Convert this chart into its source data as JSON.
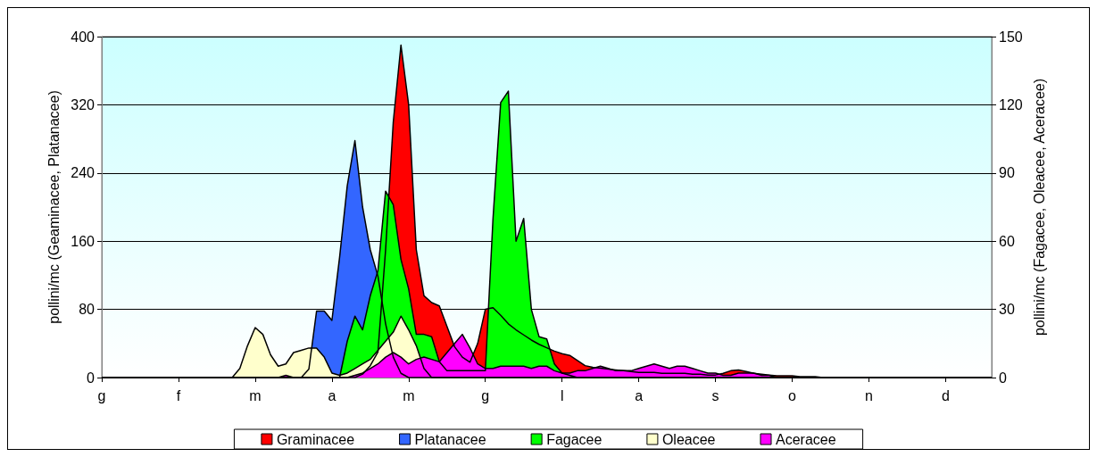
{
  "chart_data": {
    "type": "area",
    "ylabel": "pollini/mc (Geaminacee, Platanacee)",
    "y2label": "pollini/mc (Fagacee, Oleacee, Aceracee)",
    "categories": [
      "g",
      null,
      null,
      null,
      null,
      null,
      null,
      null,
      null,
      null,
      "f",
      null,
      null,
      null,
      null,
      null,
      null,
      null,
      null,
      null,
      "m",
      null,
      null,
      null,
      null,
      null,
      null,
      null,
      null,
      null,
      "a",
      null,
      null,
      null,
      null,
      null,
      null,
      null,
      null,
      null,
      "m",
      null,
      null,
      null,
      null,
      null,
      null,
      null,
      null,
      null,
      "g",
      null,
      null,
      null,
      null,
      null,
      null,
      null,
      null,
      null,
      "l",
      null,
      null,
      null,
      null,
      null,
      null,
      null,
      null,
      null,
      "a",
      null,
      null,
      null,
      null,
      null,
      null,
      null,
      null,
      null,
      "s",
      null,
      null,
      null,
      null,
      null,
      null,
      null,
      null,
      null,
      "o",
      null,
      null,
      null,
      null,
      null,
      null,
      null,
      null,
      null,
      "n",
      null,
      null,
      null,
      null,
      null,
      null,
      null,
      null,
      null,
      "d",
      null,
      null,
      null,
      null,
      null,
      null
    ],
    "ylim": [
      0,
      400
    ],
    "yticks": [
      0,
      80,
      160,
      240,
      320,
      400
    ],
    "y2lim": [
      0,
      150
    ],
    "y2ticks": [
      0,
      30,
      60,
      90,
      120,
      150
    ],
    "grid": "y",
    "legend": "bottom",
    "marker": "none",
    "series": [
      {
        "name": "Graminacee",
        "color": "#ff0000",
        "values": [
          0,
          0,
          0,
          0,
          0,
          0,
          0,
          0,
          0,
          0,
          0,
          0,
          0,
          0,
          0,
          0,
          0,
          0,
          0,
          0,
          0,
          0,
          0,
          0,
          0,
          0,
          0,
          0,
          0,
          0,
          0,
          0,
          0,
          0,
          4,
          14,
          30,
          150,
          300,
          390,
          320,
          150,
          96,
          88,
          84,
          60,
          36,
          24,
          18,
          40,
          80,
          82,
          73,
          63,
          56,
          50,
          44,
          39,
          35,
          31,
          28,
          26,
          20,
          14,
          12,
          11,
          10,
          9,
          8,
          7,
          6,
          6,
          6,
          5,
          5,
          5,
          5,
          4,
          4,
          3,
          3,
          5,
          8,
          9,
          7,
          5,
          4,
          3,
          2,
          2,
          2,
          1,
          1,
          1,
          0,
          0,
          0,
          0,
          0,
          0,
          0,
          0,
          0,
          0,
          0,
          0,
          0,
          0,
          0,
          0,
          0,
          0,
          0,
          0,
          0,
          0,
          0
        ]
      },
      {
        "name": "Platanacee",
        "color": "#3366ff",
        "values": [
          0,
          0,
          0,
          0,
          0,
          0,
          0,
          0,
          0,
          0,
          0,
          0,
          0,
          0,
          0,
          0,
          0,
          0,
          0,
          0,
          0,
          0,
          0,
          0,
          0,
          0,
          0,
          10,
          78,
          78,
          67,
          141,
          225,
          278,
          200,
          150,
          119,
          63,
          24,
          5,
          0,
          0,
          0,
          0,
          0,
          0,
          0,
          0,
          0,
          0,
          0,
          0,
          0,
          0,
          0,
          0,
          0,
          0,
          0,
          0,
          0,
          0,
          0,
          0,
          0,
          0,
          0,
          0,
          0,
          0,
          0,
          0,
          0,
          0,
          0,
          0,
          0,
          0,
          0,
          0,
          0,
          0,
          0,
          0,
          0,
          0,
          0,
          0,
          0,
          0,
          0,
          0,
          0,
          0,
          0,
          0,
          0,
          0,
          0,
          0,
          0,
          0,
          0,
          0,
          0,
          0,
          0,
          0,
          0,
          0,
          0,
          0,
          0,
          0,
          0,
          0,
          0
        ]
      },
      {
        "name": "Fagacee",
        "color": "#00ff00",
        "axis": "y2",
        "values": [
          0,
          0,
          0,
          0,
          0,
          0,
          0,
          0,
          0,
          0,
          0,
          0,
          0,
          0,
          0,
          0,
          0,
          0,
          0,
          0,
          0,
          0,
          0,
          0,
          0,
          0,
          0,
          0,
          0,
          0,
          0,
          0,
          16,
          27,
          21,
          36,
          47,
          82,
          76,
          52,
          39,
          19,
          19,
          18,
          7,
          3,
          3,
          3,
          3,
          3,
          3,
          70,
          121,
          126,
          60,
          70,
          30,
          18,
          17,
          6,
          2,
          1,
          0,
          0,
          0,
          0,
          0,
          0,
          0,
          0,
          0,
          0,
          0,
          0,
          0,
          0,
          0,
          0,
          0,
          0,
          0,
          0,
          0,
          0,
          0,
          0,
          0,
          0,
          0,
          0,
          0,
          0,
          0,
          0,
          0,
          0,
          0,
          0,
          0,
          0,
          0,
          0,
          0,
          0,
          0,
          0,
          0,
          0,
          0,
          0,
          0,
          0,
          0,
          0,
          0,
          0,
          0
        ]
      },
      {
        "name": "Oleacee",
        "color": "#ffffcc",
        "axis": "y2",
        "values": [
          0,
          0,
          0,
          0,
          0,
          0,
          0,
          0,
          0,
          0,
          0,
          0,
          0,
          0,
          0,
          0,
          0,
          0,
          4,
          14,
          22,
          19,
          10,
          5,
          6,
          11,
          12,
          13,
          13,
          9,
          2,
          1,
          2,
          4,
          6,
          8,
          12,
          16,
          20,
          27,
          21,
          14,
          4,
          0,
          0,
          0,
          0,
          0,
          0,
          0,
          0,
          0,
          0,
          0,
          0,
          0,
          0,
          0,
          0,
          0,
          0,
          0,
          0,
          0,
          0,
          0,
          0,
          0,
          0,
          0,
          0,
          0,
          0,
          0,
          0,
          0,
          0,
          0,
          0,
          0,
          0,
          0,
          0,
          0,
          0,
          0,
          0,
          0,
          0,
          0,
          0,
          0,
          0,
          0,
          0,
          0,
          0,
          0,
          0,
          0,
          0,
          0,
          0,
          0,
          0,
          0,
          0,
          0,
          0,
          0,
          0,
          0,
          0,
          0,
          0,
          0,
          0
        ]
      },
      {
        "name": "Aceracee",
        "color": "#ff00ff",
        "axis": "y2",
        "values": [
          0,
          0,
          0,
          0,
          0,
          0,
          0,
          0,
          0,
          0,
          0,
          0,
          0,
          0,
          0,
          0,
          0,
          0,
          0,
          0,
          0,
          0,
          0,
          0,
          1,
          0,
          0,
          0,
          0,
          0,
          0,
          0,
          0,
          1,
          2,
          4,
          6,
          9,
          11,
          9,
          6,
          8,
          9,
          8,
          7,
          11,
          15,
          19,
          13,
          6,
          4,
          4,
          5,
          5,
          5,
          5,
          4,
          5,
          5,
          3,
          2,
          2,
          3,
          3,
          4,
          5,
          4,
          3,
          3,
          3,
          4,
          5,
          6,
          5,
          4,
          5,
          5,
          4,
          3,
          2,
          2,
          1,
          1,
          2,
          2,
          2,
          1,
          1,
          0,
          0,
          0,
          0,
          0,
          0,
          0,
          0,
          0,
          0,
          0,
          0,
          0,
          0,
          0,
          0,
          0,
          0,
          0,
          0,
          0,
          0,
          0,
          0,
          0,
          0,
          0,
          0,
          0
        ]
      }
    ]
  }
}
